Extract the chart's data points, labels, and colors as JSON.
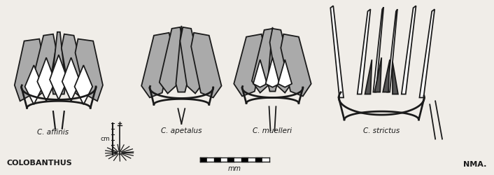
{
  "bg_color": "#f0ede8",
  "line_color": "#1a1a1a",
  "title": "COLOBANTHUS",
  "label_affinis": "C. affinis",
  "label_apetalus": "C. apetalus",
  "label_muelleri": "C. muelleri",
  "label_strictus": "C. strictus",
  "label_cm": "cm",
  "label_mm": "mm",
  "label_nma": "NMA.",
  "figsize": [
    7.06,
    2.5
  ],
  "dpi": 100
}
